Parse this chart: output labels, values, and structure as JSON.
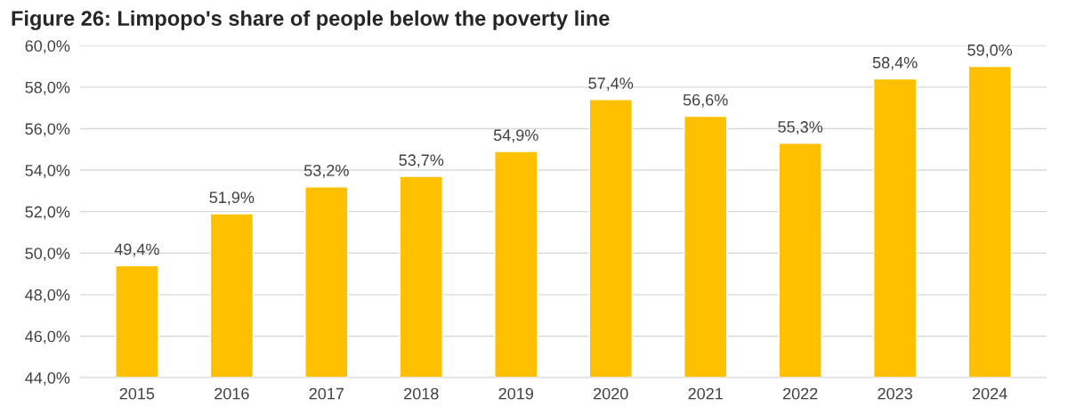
{
  "chart_data": {
    "type": "bar",
    "title": "Figure 26: Limpopo's share of people below the poverty line",
    "categories": [
      "2015",
      "2016",
      "2017",
      "2018",
      "2019",
      "2020",
      "2021",
      "2022",
      "2023",
      "2024"
    ],
    "values": [
      49.4,
      51.9,
      53.2,
      53.7,
      54.9,
      57.4,
      56.6,
      55.3,
      58.4,
      59.0
    ],
    "value_labels": [
      "49,4%",
      "51,9%",
      "53,2%",
      "53,7%",
      "54,9%",
      "57,4%",
      "56,6%",
      "55,3%",
      "58,4%",
      "59,0%"
    ],
    "color": "#ffc000",
    "ylim": [
      44,
      60
    ],
    "yticks": [
      {
        "value": 44,
        "label": "44,0%"
      },
      {
        "value": 46,
        "label": "46,0%"
      },
      {
        "value": 48,
        "label": "48,0%"
      },
      {
        "value": 50,
        "label": "50,0%"
      },
      {
        "value": 52,
        "label": "52,0%"
      },
      {
        "value": 54,
        "label": "54,0%"
      },
      {
        "value": 56,
        "label": "56,0%"
      },
      {
        "value": 58,
        "label": "58,0%"
      },
      {
        "value": 60,
        "label": "60,0%"
      }
    ],
    "grid": "y"
  }
}
